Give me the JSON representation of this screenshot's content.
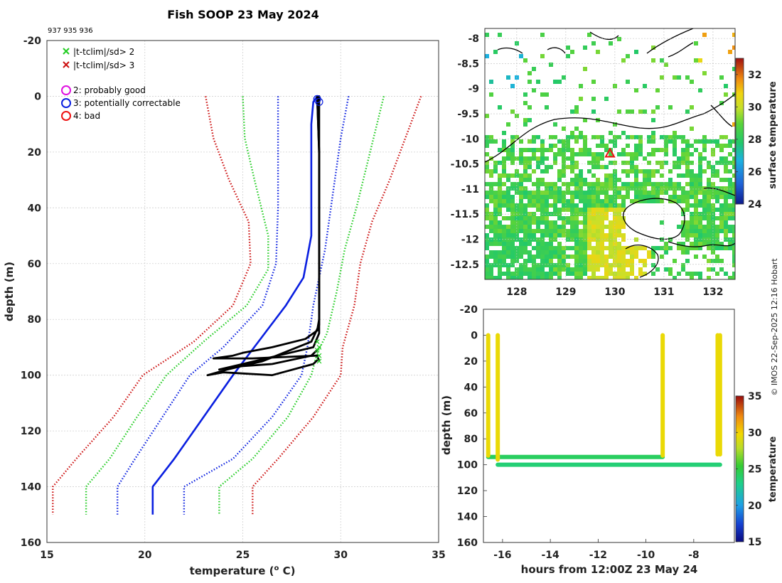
{
  "title": "Fish SOOP 23 May 2024",
  "subtitle": "937 935 936",
  "credit": "© IMOS 22-Sep-2025 12:16 Hobart",
  "colors": {
    "accent_black": "#000000",
    "blue": "#0a1fe0",
    "green": "#22cc22",
    "red": "#cc1111",
    "magenta": "#e010e0"
  },
  "legend": {
    "flag_items": [
      {
        "marker": "x",
        "color": "#22cc22",
        "label": "|t-tclim|/sd> 2"
      },
      {
        "marker": "x",
        "color": "#cc1111",
        "label": "|t-tclim|/sd> 3"
      }
    ],
    "qc_items": [
      {
        "marker": "o",
        "color": "#e010e0",
        "label": "2: probably good"
      },
      {
        "marker": "o",
        "color": "#0a1fe0",
        "label": "3: potentially correctable"
      },
      {
        "marker": "o",
        "color": "#ee1111",
        "label": "4: bad"
      }
    ]
  },
  "chart_data": [
    {
      "id": "profile",
      "type": "line",
      "xlabel": "temperature (o C)",
      "xlabel_base": "temperature (",
      "xlabel_sup": "o",
      "xlabel_end": " C)",
      "ylabel": "depth (m)",
      "xlim": [
        15,
        35
      ],
      "ylim": [
        -20,
        160
      ],
      "y_reversed": true,
      "xticks": [
        15,
        20,
        25,
        30,
        35
      ],
      "yticks": [
        -20,
        0,
        20,
        40,
        60,
        80,
        100,
        120,
        140,
        160
      ],
      "grid": true,
      "climatology": [
        {
          "name": "clim mean",
          "color": "#0a1fe0",
          "style": "solid",
          "points": [
            [
              28.8,
              0
            ],
            [
              28.6,
              2
            ],
            [
              28.5,
              10
            ],
            [
              28.5,
              30
            ],
            [
              28.5,
              50
            ],
            [
              28.1,
              65
            ],
            [
              27.2,
              75
            ],
            [
              25.8,
              88
            ],
            [
              24.5,
              100
            ],
            [
              23.0,
              115
            ],
            [
              21.5,
              130
            ],
            [
              20.4,
              140
            ],
            [
              20.4,
              150
            ]
          ]
        },
        {
          "name": "mean - 1 sd",
          "color": "#0a1fe0",
          "style": "dotted",
          "points": [
            [
              26.8,
              0
            ],
            [
              26.8,
              20
            ],
            [
              26.8,
              40
            ],
            [
              26.7,
              60
            ],
            [
              26.0,
              75
            ],
            [
              24.0,
              90
            ],
            [
              22.3,
              100
            ],
            [
              20.9,
              115
            ],
            [
              19.5,
              130
            ],
            [
              18.6,
              140
            ],
            [
              18.6,
              150
            ]
          ]
        },
        {
          "name": "mean + 1 sd",
          "color": "#0a1fe0",
          "style": "dotted",
          "points": [
            [
              30.4,
              0
            ],
            [
              30.0,
              15
            ],
            [
              29.6,
              35
            ],
            [
              29.2,
              55
            ],
            [
              28.6,
              75
            ],
            [
              28.3,
              90
            ],
            [
              28.0,
              100
            ],
            [
              26.5,
              115
            ],
            [
              24.5,
              130
            ],
            [
              22.0,
              140
            ],
            [
              22.0,
              150
            ]
          ]
        },
        {
          "name": "mean - 2 sd",
          "color": "#22cc22",
          "style": "dotted",
          "points": [
            [
              25.0,
              0
            ],
            [
              25.1,
              15
            ],
            [
              25.6,
              30
            ],
            [
              26.3,
              50
            ],
            [
              26.3,
              62
            ],
            [
              25.2,
              75
            ],
            [
              23.0,
              88
            ],
            [
              21.1,
              100
            ],
            [
              19.6,
              115
            ],
            [
              18.2,
              130
            ],
            [
              17.0,
              140
            ],
            [
              17.0,
              150
            ]
          ]
        },
        {
          "name": "mean + 2 sd",
          "color": "#22cc22",
          "style": "dotted",
          "points": [
            [
              32.2,
              0
            ],
            [
              31.5,
              20
            ],
            [
              30.8,
              40
            ],
            [
              30.2,
              55
            ],
            [
              29.8,
              70
            ],
            [
              29.3,
              85
            ],
            [
              28.8,
              92
            ],
            [
              28.5,
              100
            ],
            [
              27.3,
              115
            ],
            [
              25.5,
              130
            ],
            [
              23.8,
              140
            ],
            [
              23.8,
              150
            ]
          ]
        },
        {
          "name": "mean - 3 sd",
          "color": "#cc1111",
          "style": "dotted",
          "points": [
            [
              23.1,
              0
            ],
            [
              23.5,
              15
            ],
            [
              24.3,
              30
            ],
            [
              25.3,
              45
            ],
            [
              25.4,
              60
            ],
            [
              24.5,
              75
            ],
            [
              22.5,
              88
            ],
            [
              19.9,
              100
            ],
            [
              18.4,
              115
            ],
            [
              16.5,
              130
            ],
            [
              15.3,
              140
            ],
            [
              15.3,
              150
            ]
          ]
        },
        {
          "name": "mean + 3 sd",
          "color": "#cc1111",
          "style": "dotted",
          "points": [
            [
              34.1,
              0
            ],
            [
              33.3,
              15
            ],
            [
              32.5,
              30
            ],
            [
              31.6,
              45
            ],
            [
              31.0,
              60
            ],
            [
              30.7,
              75
            ],
            [
              30.1,
              90
            ],
            [
              30.0,
              100
            ],
            [
              28.6,
              115
            ],
            [
              26.8,
              130
            ],
            [
              25.5,
              140
            ],
            [
              25.5,
              150
            ]
          ]
        }
      ],
      "profiles": [
        {
          "name": "937",
          "color": "#000000",
          "points": [
            [
              28.8,
              0
            ],
            [
              28.9,
              0
            ],
            [
              28.9,
              20
            ],
            [
              28.9,
              40
            ],
            [
              28.9,
              60
            ],
            [
              28.9,
              80
            ],
            [
              28.8,
              84
            ],
            [
              28.2,
              87
            ],
            [
              26.5,
              90
            ],
            [
              25.0,
              92
            ],
            [
              24.5,
              93
            ],
            [
              23.5,
              94
            ],
            [
              25.5,
              94
            ],
            [
              28.8,
              93
            ],
            [
              28.9,
              95
            ]
          ]
        },
        {
          "name": "935",
          "color": "#000000",
          "points": [
            [
              28.8,
              0
            ],
            [
              28.9,
              20
            ],
            [
              28.9,
              60
            ],
            [
              28.9,
              82
            ],
            [
              28.5,
              88
            ],
            [
              26.0,
              95
            ],
            [
              24.2,
              98
            ],
            [
              23.2,
              100
            ],
            [
              24.0,
              99
            ],
            [
              26.5,
              100
            ],
            [
              28.6,
              96
            ],
            [
              28.9,
              94
            ]
          ]
        },
        {
          "name": "936",
          "color": "#000000",
          "points": [
            [
              28.8,
              0
            ],
            [
              28.9,
              20
            ],
            [
              28.9,
              60
            ],
            [
              28.9,
              85
            ],
            [
              28.6,
              90
            ],
            [
              26.8,
              93
            ],
            [
              25.0,
              96
            ],
            [
              23.8,
              98
            ],
            [
              24.5,
              97
            ],
            [
              26.5,
              96
            ],
            [
              28.5,
              93
            ],
            [
              28.8,
              91
            ]
          ]
        }
      ],
      "qc_markers": [
        {
          "depth": 1,
          "temp": 28.8,
          "color": "#0a1fe0",
          "marker": "o"
        },
        {
          "depth": 2,
          "temp": 28.9,
          "color": "#0a1fe0",
          "marker": "o"
        }
      ],
      "flag_markers": [
        {
          "depth": 88,
          "temp": 28.8,
          "color": "#22cc22"
        },
        {
          "depth": 90,
          "temp": 28.9,
          "color": "#22cc22"
        },
        {
          "depth": 91,
          "temp": 28.8,
          "color": "#22cc22"
        },
        {
          "depth": 93,
          "temp": 28.9,
          "color": "#22cc22"
        },
        {
          "depth": 95,
          "temp": 28.9,
          "color": "#22cc22"
        }
      ]
    },
    {
      "id": "map",
      "type": "heatmap",
      "xlim": [
        127.35,
        132.45
      ],
      "ylim": [
        -12.8,
        -7.8
      ],
      "xticks": [
        128,
        129,
        130,
        131,
        132
      ],
      "yticks": [
        -8,
        -8.5,
        -9,
        -9.5,
        -10,
        -10.5,
        -11,
        -11.5,
        -12,
        -12.5
      ],
      "ytick_labels": [
        "-8",
        "-8.5",
        "-9",
        "-9.5",
        "-10",
        "-10.5",
        "-11",
        "-11.5",
        "-12",
        "-12.5"
      ],
      "colorbar_label": "surface temperature",
      "clim": [
        24,
        33
      ],
      "colorbar_ticks": [
        24,
        26,
        28,
        30,
        32
      ],
      "station": {
        "lon": 129.9,
        "lat": -10.3,
        "marker": "triangle",
        "color": "#ee1111"
      },
      "grid": true
    },
    {
      "id": "timeseries",
      "type": "scatter",
      "xlabel": "hours from 12:00Z 23 May 24",
      "ylabel": "depth (m)",
      "xlim": [
        -16.8,
        -6.3
      ],
      "ylim": [
        -20,
        160
      ],
      "y_reversed": true,
      "xticks": [
        -16,
        -14,
        -12,
        -10,
        -8
      ],
      "yticks": [
        -20,
        0,
        20,
        40,
        60,
        80,
        100,
        120,
        140,
        160
      ],
      "colorbar_label": "temperature",
      "clim": [
        15,
        35
      ],
      "colorbar_ticks": [
        15,
        20,
        25,
        30,
        35
      ],
      "segments": [
        {
          "name": "descent 1",
          "kind": "vertical",
          "x": -16.6,
          "depth": [
            0,
            93
          ],
          "temp": 28.8
        },
        {
          "name": "descent 2",
          "kind": "vertical",
          "x": -16.2,
          "depth": [
            0,
            96
          ],
          "temp": 28.8
        },
        {
          "name": "descent 3",
          "kind": "vertical",
          "x": -9.3,
          "depth": [
            0,
            93
          ],
          "temp": 28.8
        },
        {
          "name": "descent 4",
          "kind": "vertical",
          "x": -7.0,
          "depth": [
            0,
            92
          ],
          "temp": 28.8
        },
        {
          "name": "descent 5",
          "kind": "vertical",
          "x": -6.9,
          "depth": [
            0,
            92
          ],
          "temp": 28.8
        },
        {
          "name": "bottom track A",
          "kind": "horizontal",
          "x": [
            -16.6,
            -9.3
          ],
          "depth": 94,
          "temp": 24.0
        },
        {
          "name": "bottom track B",
          "kind": "horizontal",
          "x": [
            -16.2,
            -6.9
          ],
          "depth": 100,
          "temp": 23.5
        }
      ]
    }
  ]
}
